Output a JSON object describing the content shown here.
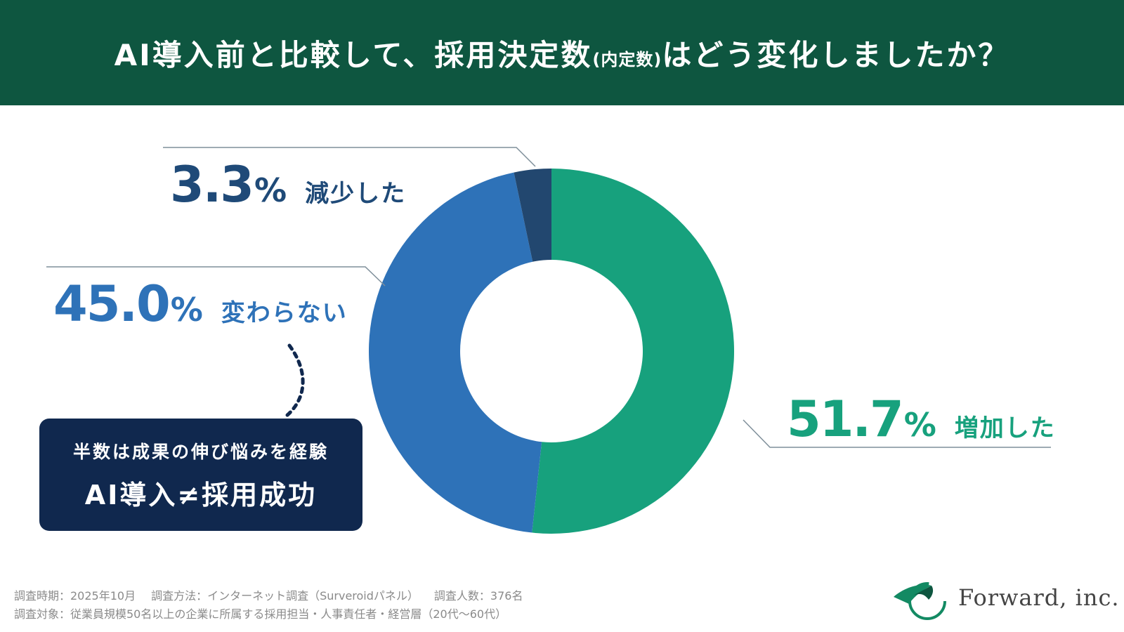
{
  "header": {
    "title_main": "AI導入前と比較して、採用決定数",
    "title_paren": "(内定数)",
    "title_end": "はどう変化しましたか？",
    "background_color": "#0e5640"
  },
  "chart_data": {
    "type": "pie",
    "style": "donut",
    "categories": [
      "増加した",
      "変わらない",
      "減少した"
    ],
    "values": [
      51.7,
      45.0,
      3.3
    ],
    "value_labels": [
      "51.7",
      "45.0",
      "3.3"
    ],
    "unit": "%",
    "colors": [
      "#17a17d",
      "#2e72b8",
      "#22476f"
    ],
    "title": ""
  },
  "callout": {
    "subtitle": "半数は成果の伸び悩みを経験",
    "main": "AI導入≠採用成功"
  },
  "footer": {
    "period": "調査時期：2025年10月",
    "method": "調査方法：インターネット調査（Surveroidパネル）",
    "count": "調査人数：376名",
    "target": "調査対象：従業員規模50名以上の企業に所属する採用担当・人事責任者・経営層（20代〜60代）"
  },
  "logo": {
    "text": "Forward, inc.",
    "icon": "forward-leaf-logo-icon"
  }
}
